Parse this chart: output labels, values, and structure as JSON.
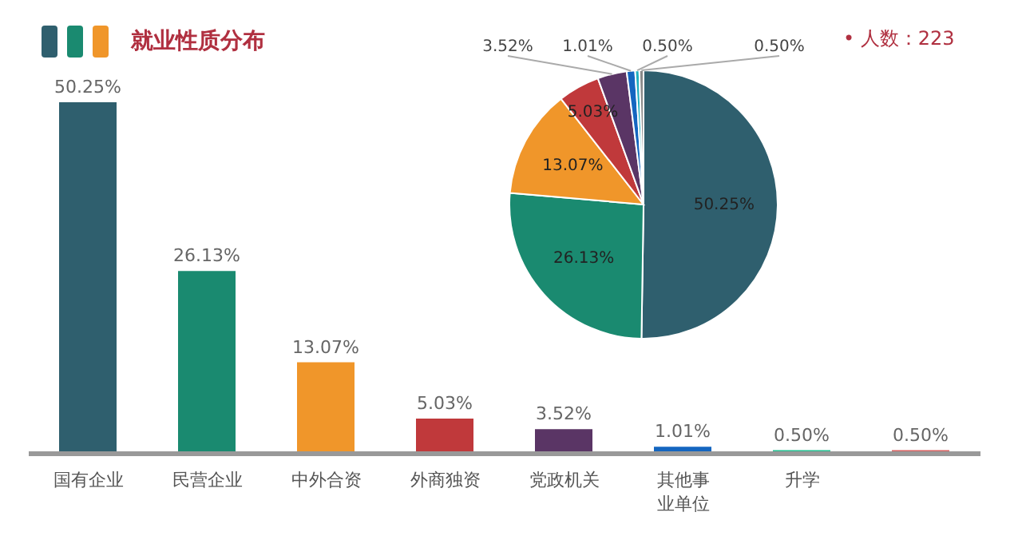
{
  "chart_data": [
    {
      "type": "bar",
      "title": "就业性质分布",
      "categories": [
        "国有企业",
        "民营企业",
        "中外合资",
        "外商独资",
        "党政机关",
        "其他事业单位",
        "升学",
        null
      ],
      "values": [
        50.25,
        26.13,
        13.07,
        5.03,
        3.52,
        1.01,
        0.5,
        0.5
      ],
      "colors": [
        "#2f5f6e",
        "#1a8a70",
        "#f0962a",
        "#c0393b",
        "#5a3565",
        "#1466c0",
        "#20c090",
        "#d86060"
      ],
      "value_labels": [
        "50.25%",
        "26.13%",
        "13.07%",
        "5.03%",
        "3.52%",
        "1.01%",
        "0.50%",
        "0.50%"
      ]
    },
    {
      "type": "pie",
      "categories": [
        null,
        null,
        null,
        null,
        null,
        null,
        null,
        null
      ],
      "values": [
        50.25,
        26.13,
        13.07,
        5.03,
        3.52,
        1.01,
        0.5,
        0.5
      ],
      "colors": [
        "#2f5f6e",
        "#1a8a70",
        "#f0962a",
        "#c0393b",
        "#5a3565",
        "#1466c0",
        "#20b0c0",
        "#8a8a8a"
      ],
      "value_labels": [
        "50.25%",
        "26.13%",
        "13.07%",
        "5.03%",
        "3.52%",
        "1.01%",
        "0.50%",
        "0.50%"
      ],
      "annotations": [
        "• 人数：223"
      ]
    }
  ]
}
